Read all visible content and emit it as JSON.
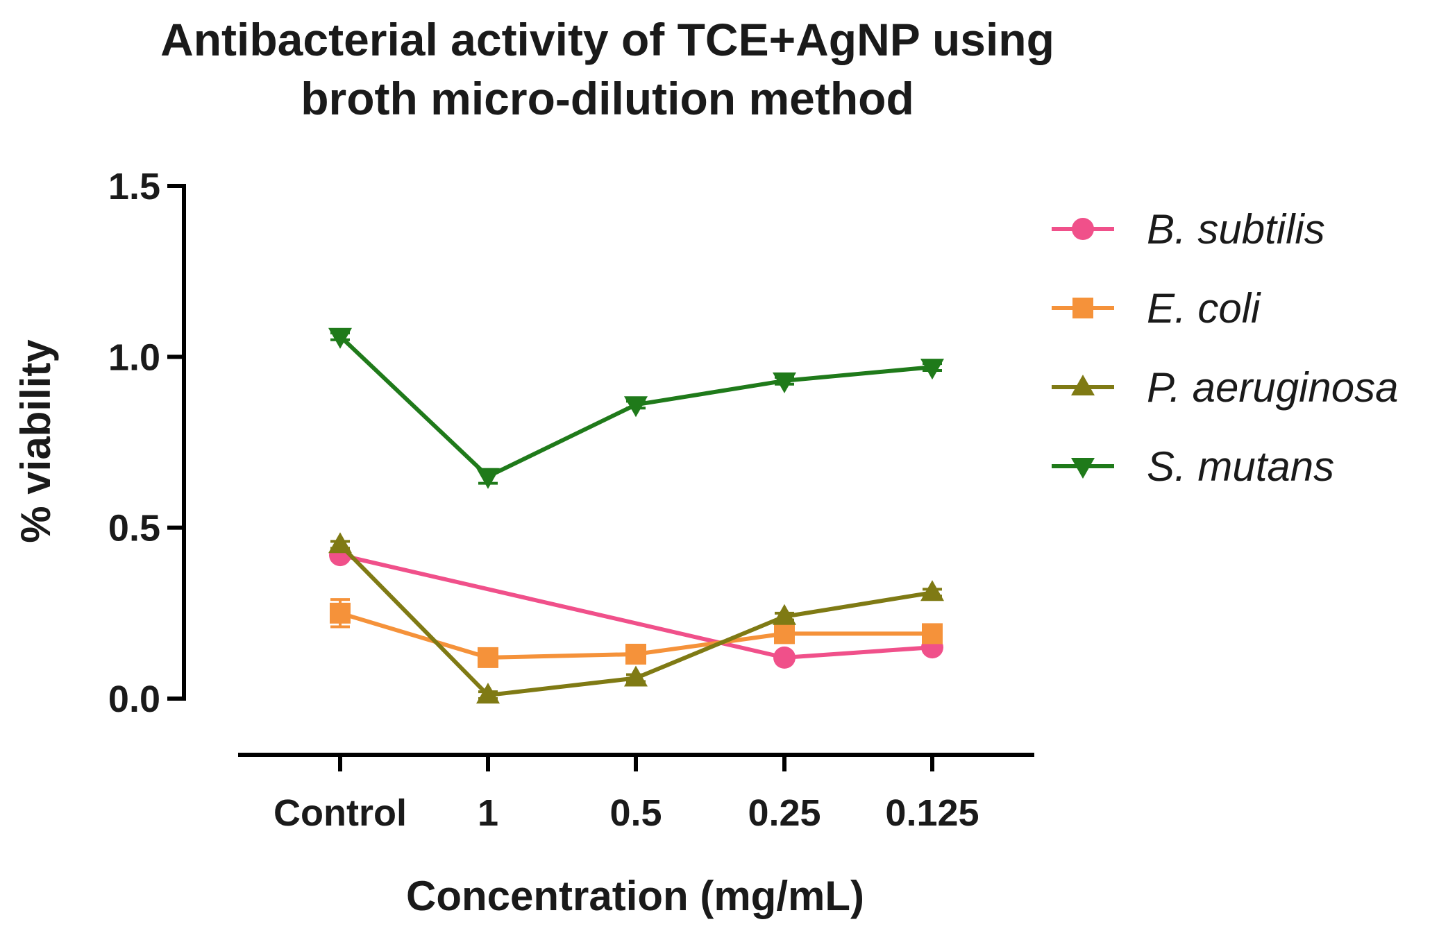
{
  "chart_data": {
    "type": "line",
    "title": [
      "Antibacterial activity of TCE+AgNP using",
      "broth micro-dilution method"
    ],
    "xlabel": "Concentration (mg/mL)",
    "ylabel": "% viability",
    "categories": [
      "Control",
      "1",
      "0.5",
      "0.25",
      "0.125"
    ],
    "yticks": [
      "0.0",
      "0.5",
      "1.0",
      "1.5"
    ],
    "ylim": [
      0,
      1.5
    ],
    "grid": false,
    "legend_position": "right",
    "series": [
      {
        "name": "B. subtilis",
        "color": "#f0508a",
        "marker": "circle",
        "values": [
          0.42,
          null,
          null,
          0.12,
          0.15
        ],
        "errors": [
          0.01,
          null,
          null,
          0.01,
          0.01
        ]
      },
      {
        "name": "E. coli",
        "color": "#f5923a",
        "marker": "square",
        "values": [
          0.25,
          0.12,
          0.13,
          0.19,
          0.19
        ],
        "errors": [
          0.04,
          0.01,
          0.01,
          0.01,
          0.01
        ]
      },
      {
        "name": "P. aeruginosa",
        "color": "#7f7a14",
        "marker": "triangle-up",
        "values": [
          0.45,
          0.01,
          0.06,
          0.24,
          0.31
        ],
        "errors": [
          0.01,
          0.01,
          0.01,
          0.01,
          0.01
        ]
      },
      {
        "name": "S. mutans",
        "color": "#1f7a1a",
        "marker": "triangle-down",
        "values": [
          1.06,
          0.65,
          0.86,
          0.93,
          0.97
        ],
        "errors": [
          0.01,
          0.02,
          0.01,
          0.01,
          0.01
        ]
      }
    ]
  }
}
